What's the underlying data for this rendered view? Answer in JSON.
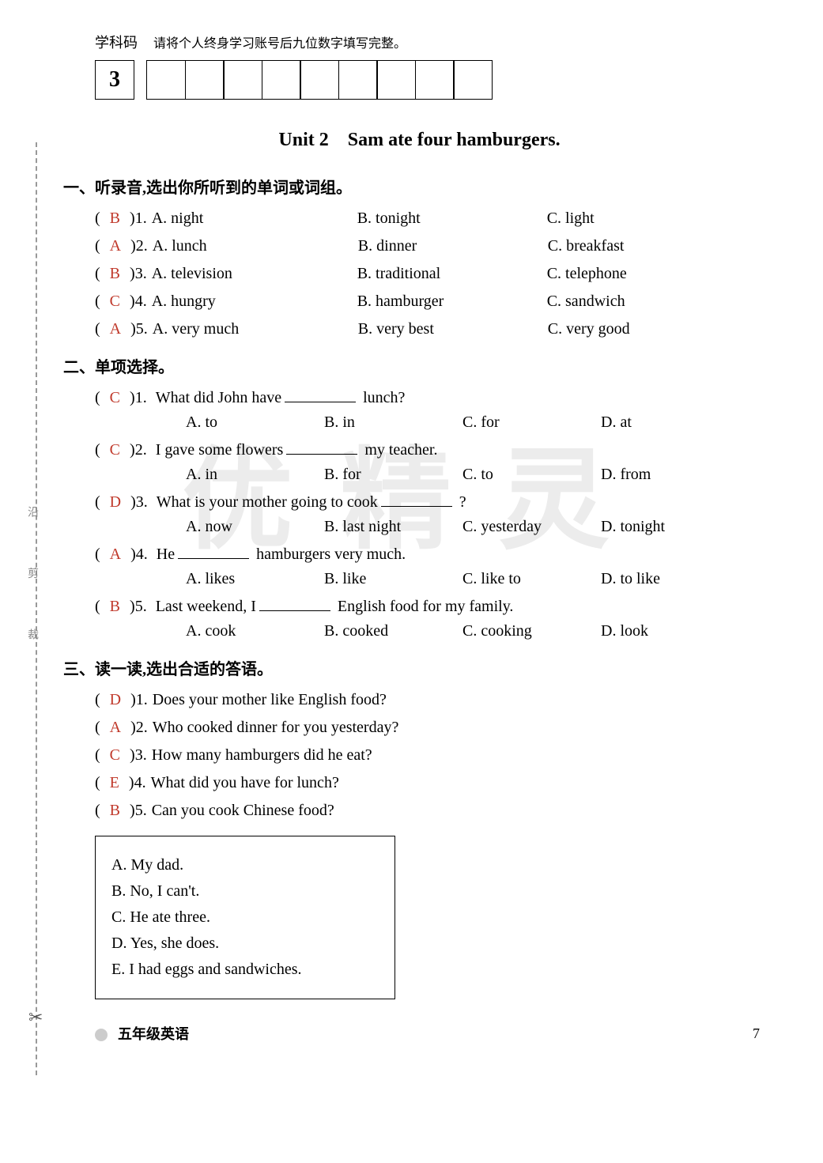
{
  "header": {
    "subject_label": "学科码",
    "instruction": "请将个人终身学习账号后九位数字填写完整。",
    "code_first": "3"
  },
  "unit_title": "Unit 2　Sam ate four hamburgers.",
  "section1": {
    "title": "一、听录音,选出你所听到的单词或词组。",
    "items": [
      {
        "ans": "B",
        "num": "1.",
        "a": "A. night",
        "b": "B. tonight",
        "c": "C. light"
      },
      {
        "ans": "A",
        "num": "2.",
        "a": "A. lunch",
        "b": "B. dinner",
        "c": "C. breakfast"
      },
      {
        "ans": "B",
        "num": "3.",
        "a": "A. television",
        "b": "B. traditional",
        "c": "C. telephone"
      },
      {
        "ans": "C",
        "num": "4.",
        "a": "A. hungry",
        "b": "B. hamburger",
        "c": "C. sandwich"
      },
      {
        "ans": "A",
        "num": "5.",
        "a": "A. very much",
        "b": "B. very best",
        "c": "C. very good"
      }
    ]
  },
  "section2": {
    "title": "二、单项选择。",
    "items": [
      {
        "ans": "C",
        "num": "1.",
        "stem_pre": "What did John have",
        "stem_post": "lunch?",
        "a": "A. to",
        "b": "B. in",
        "c": "C. for",
        "d": "D. at"
      },
      {
        "ans": "C",
        "num": "2.",
        "stem_pre": "I gave some flowers",
        "stem_post": "my teacher.",
        "a": "A. in",
        "b": "B. for",
        "c": "C. to",
        "d": "D. from"
      },
      {
        "ans": "D",
        "num": "3.",
        "stem_pre": "What is your mother going to cook",
        "stem_post": "?",
        "a": "A. now",
        "b": "B. last night",
        "c": "C. yesterday",
        "d": "D. tonight"
      },
      {
        "ans": "A",
        "num": "4.",
        "stem_pre": "He",
        "stem_post": "hamburgers very much.",
        "a": "A. likes",
        "b": "B. like",
        "c": "C. like to",
        "d": "D. to like"
      },
      {
        "ans": "B",
        "num": "5.",
        "stem_pre": "Last weekend, I",
        "stem_post": "English food for my family.",
        "a": "A. cook",
        "b": "B. cooked",
        "c": "C. cooking",
        "d": "D. look"
      }
    ]
  },
  "section3": {
    "title": "三、读一读,选出合适的答语。",
    "items": [
      {
        "ans": "D",
        "num": "1.",
        "q": "Does your mother like English food?"
      },
      {
        "ans": "A",
        "num": "2.",
        "q": "Who cooked dinner for you yesterday?"
      },
      {
        "ans": "C",
        "num": "3.",
        "q": "How many hamburgers did he eat?"
      },
      {
        "ans": "E",
        "num": "4.",
        "q": "What did you have for lunch?"
      },
      {
        "ans": "B",
        "num": "5.",
        "q": "Can you cook Chinese food?"
      }
    ],
    "answers": [
      "A. My dad.",
      "B. No, I can't.",
      "C. He ate three.",
      "D. Yes, she does.",
      "E. I had eggs and sandwiches."
    ]
  },
  "footer": {
    "label": "五年级英语",
    "page": "7"
  },
  "watermark": "优精灵",
  "side_text": "沿 剪 裁"
}
